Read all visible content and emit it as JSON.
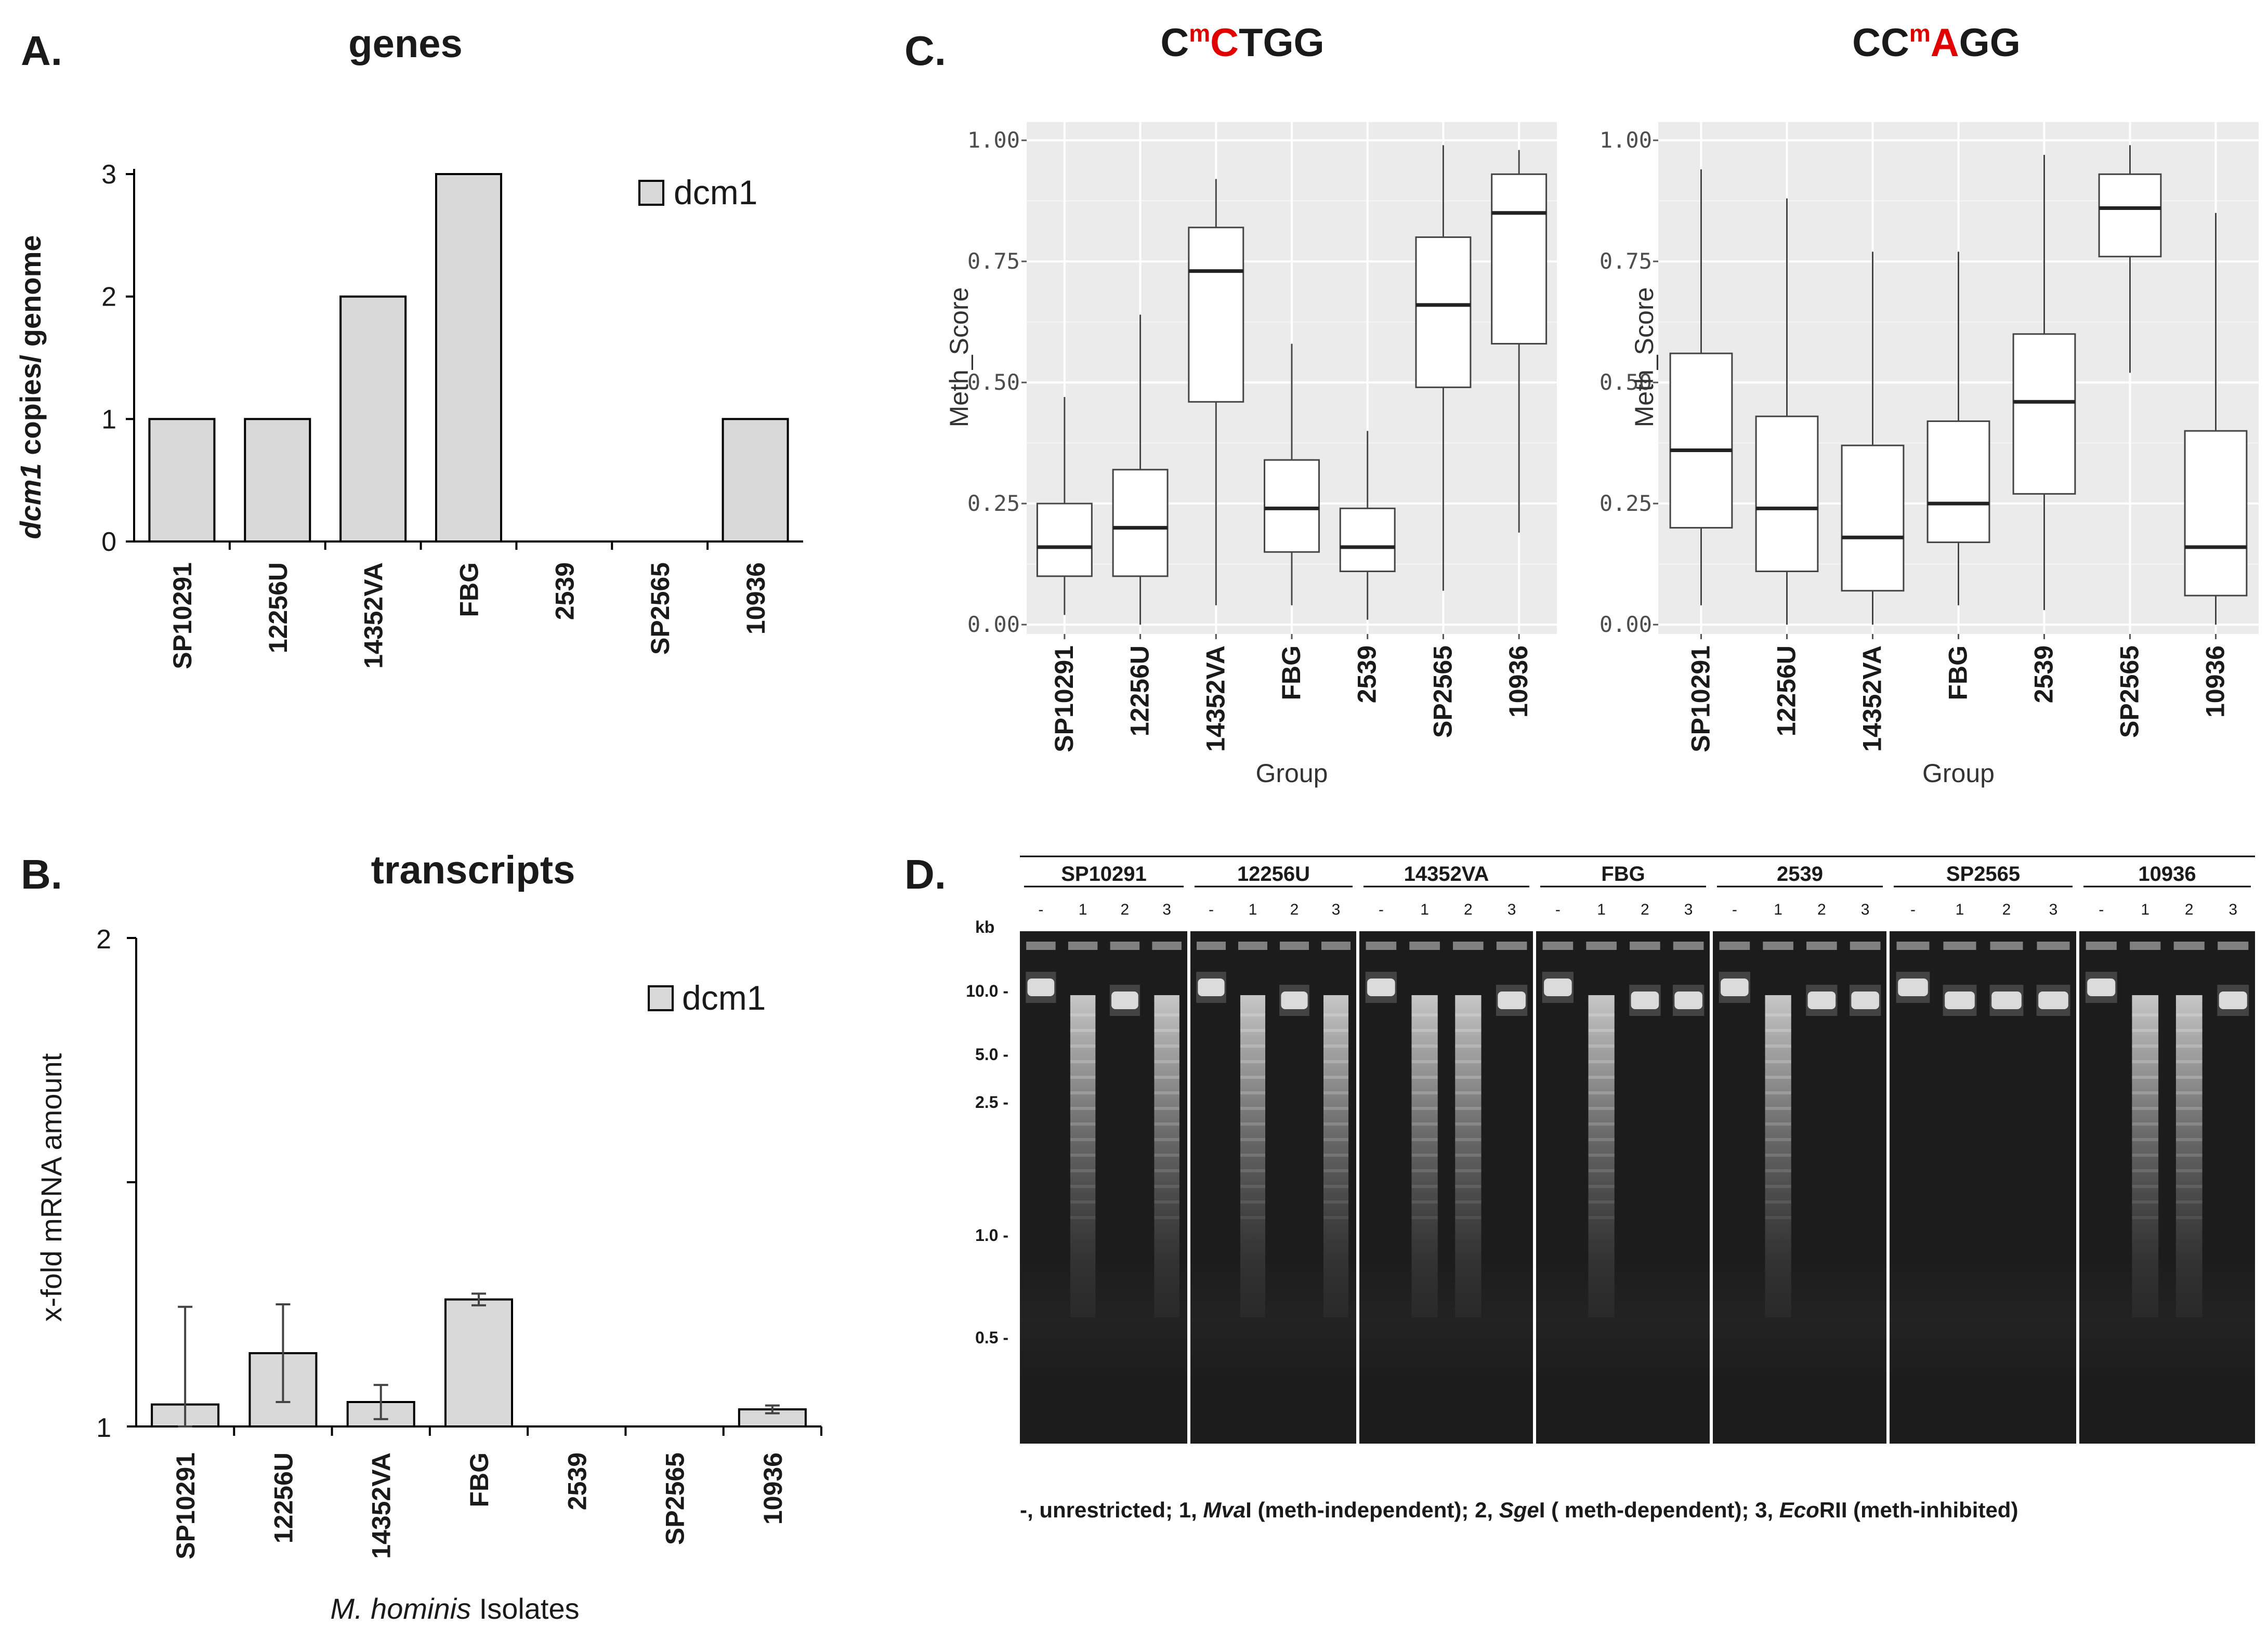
{
  "colors": {
    "bar_fill": "#d9d9d9",
    "bar_stroke": "#000000",
    "gg_panel": "#ebebeb",
    "gg_grid": "#ffffff",
    "box_fill": "#ffffff",
    "red_base": "#e00000",
    "gel_bg": "#1c1c1c"
  },
  "panels": {
    "A": {
      "letter": "A.",
      "title": "genes"
    },
    "B": {
      "letter": "B.",
      "title": "transcripts",
      "xlabel_italic": "M. hominis",
      "xlabel_rest": " Isolates"
    },
    "C": {
      "letter": "C."
    },
    "D": {
      "letter": "D."
    }
  },
  "chart_data": [
    {
      "id": "A",
      "type": "bar",
      "title": "genes",
      "ylabel_italic": "dcm1",
      "ylabel_rest": " copies/ genome",
      "categories": [
        "SP10291",
        "12256U",
        "14352VA",
        "FBG",
        "2539",
        "SP2565",
        "10936"
      ],
      "series": [
        {
          "name": "dcm1",
          "values": [
            1,
            1,
            2,
            3,
            0,
            0,
            1
          ]
        }
      ],
      "ylim": [
        0,
        3
      ],
      "yticks": [
        0,
        1,
        2,
        3
      ],
      "legend": "top-right"
    },
    {
      "id": "B",
      "type": "bar",
      "title": "transcripts",
      "ylabel": "x-fold mRNA amount",
      "xlabel": "M. hominis Isolates",
      "categories": [
        "SP10291",
        "12256U",
        "14352VA",
        "FBG",
        "2539",
        "SP2565",
        "10936"
      ],
      "series": [
        {
          "name": "dcm1",
          "values": [
            1.045,
            1.15,
            1.05,
            1.26,
            null,
            null,
            1.035
          ],
          "error": [
            0.2,
            0.1,
            0.035,
            0.012,
            null,
            null,
            0.008
          ]
        }
      ],
      "ylim": [
        1,
        2
      ],
      "yticks": [
        1,
        2
      ],
      "legend": "top-right"
    },
    {
      "id": "C1",
      "type": "box",
      "title_parts": [
        {
          "text": "C",
          "red": false,
          "sup": false
        },
        {
          "text": "m",
          "red": true,
          "sup": true
        },
        {
          "text": "C",
          "red": true,
          "sup": false
        },
        {
          "text": "TGG",
          "red": false,
          "sup": false
        }
      ],
      "xlabel": "Group",
      "ylabel": "Meth_Score",
      "yticks": [
        "0.00",
        "0.25",
        "0.50",
        "0.75",
        "1.00"
      ],
      "ylim": [
        0,
        1
      ],
      "categories": [
        "SP10291",
        "12256U",
        "14352VA",
        "FBG",
        "2539",
        "SP2565",
        "10936"
      ],
      "boxes": [
        {
          "min": 0.02,
          "q1": 0.1,
          "median": 0.16,
          "q3": 0.25,
          "max": 0.47
        },
        {
          "min": 0.0,
          "q1": 0.1,
          "median": 0.2,
          "q3": 0.32,
          "max": 0.64
        },
        {
          "min": 0.04,
          "q1": 0.46,
          "median": 0.73,
          "q3": 0.82,
          "max": 0.92
        },
        {
          "min": 0.04,
          "q1": 0.15,
          "median": 0.24,
          "q3": 0.34,
          "max": 0.58
        },
        {
          "min": 0.01,
          "q1": 0.11,
          "median": 0.16,
          "q3": 0.24,
          "max": 0.4
        },
        {
          "min": 0.07,
          "q1": 0.49,
          "median": 0.66,
          "q3": 0.8,
          "max": 0.99
        },
        {
          "min": 0.19,
          "q1": 0.58,
          "median": 0.85,
          "q3": 0.93,
          "max": 0.98
        }
      ]
    },
    {
      "id": "C2",
      "type": "box",
      "title_parts": [
        {
          "text": "CC",
          "red": false,
          "sup": false
        },
        {
          "text": "m",
          "red": true,
          "sup": true
        },
        {
          "text": "A",
          "red": true,
          "sup": false
        },
        {
          "text": "GG",
          "red": false,
          "sup": false
        }
      ],
      "xlabel": "Group",
      "ylabel": "Meth_Score",
      "yticks": [
        "0.00",
        "0.25",
        "0.50",
        "0.75",
        "1.00"
      ],
      "ylim": [
        0,
        1
      ],
      "categories": [
        "SP10291",
        "12256U",
        "14352VA",
        "FBG",
        "2539",
        "SP2565",
        "10936"
      ],
      "boxes": [
        {
          "min": 0.04,
          "q1": 0.2,
          "median": 0.36,
          "q3": 0.56,
          "max": 0.94
        },
        {
          "min": 0.0,
          "q1": 0.11,
          "median": 0.24,
          "q3": 0.43,
          "max": 0.88
        },
        {
          "min": 0.0,
          "q1": 0.07,
          "median": 0.18,
          "q3": 0.37,
          "max": 0.77
        },
        {
          "min": 0.04,
          "q1": 0.17,
          "median": 0.25,
          "q3": 0.42,
          "max": 0.77
        },
        {
          "min": 0.03,
          "q1": 0.27,
          "median": 0.46,
          "q3": 0.6,
          "max": 0.97
        },
        {
          "min": 0.52,
          "q1": 0.76,
          "median": 0.86,
          "q3": 0.93,
          "max": 0.99
        },
        {
          "min": 0.0,
          "q1": 0.06,
          "median": 0.16,
          "q3": 0.4,
          "max": 0.85
        }
      ]
    }
  ],
  "gel": {
    "isolates": [
      "SP10291",
      "12256U",
      "14352VA",
      "FBG",
      "2539",
      "SP2565",
      "10936"
    ],
    "lanes": [
      "-",
      "1",
      "2",
      "3"
    ],
    "kb_header": "kb",
    "kb_markers": [
      "10.0 -",
      "5.0 -",
      "2.5 -",
      "1.0 -",
      "0.5 -"
    ],
    "lane_patterns": [
      [
        "intact",
        "smear",
        "cut",
        "smear"
      ],
      [
        "intact",
        "smear",
        "cut",
        "smear"
      ],
      [
        "intact",
        "smear",
        "smear",
        "cut"
      ],
      [
        "intact",
        "smear",
        "cut",
        "cut"
      ],
      [
        "intact",
        "smear",
        "cut",
        "cut"
      ],
      [
        "intact",
        "cut",
        "cut",
        "cut"
      ],
      [
        "intact",
        "smear",
        "smear",
        "cut"
      ]
    ],
    "caption_parts": [
      {
        "text": "-, unrestricted; 1, ",
        "italic": false
      },
      {
        "text": "Mva",
        "italic": true
      },
      {
        "text": "I (meth-independent); 2, ",
        "italic": false
      },
      {
        "text": "Sge",
        "italic": true
      },
      {
        "text": "I ( meth-dependent); 3, ",
        "italic": false
      },
      {
        "text": "Eco",
        "italic": true
      },
      {
        "text": "RII (meth-inhibited)",
        "italic": false
      }
    ]
  }
}
